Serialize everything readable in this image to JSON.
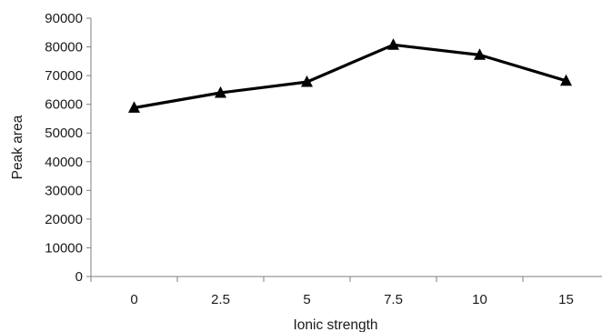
{
  "chart_data": {
    "type": "line",
    "title": "",
    "xlabel": "Ionic strength",
    "ylabel": "Peak area",
    "categories": [
      "0",
      "2.5",
      "5",
      "7.5",
      "10",
      "15"
    ],
    "series": [
      {
        "values": [
          58800,
          64000,
          67800,
          80700,
          77200,
          68200
        ],
        "marker": "triangle",
        "color": "#000000"
      }
    ],
    "ylim": [
      0,
      90000
    ],
    "yticks": [
      "0",
      "10000",
      "20000",
      "30000",
      "40000",
      "50000",
      "60000",
      "70000",
      "80000",
      "90000"
    ],
    "grid": false,
    "legend": "none"
  }
}
